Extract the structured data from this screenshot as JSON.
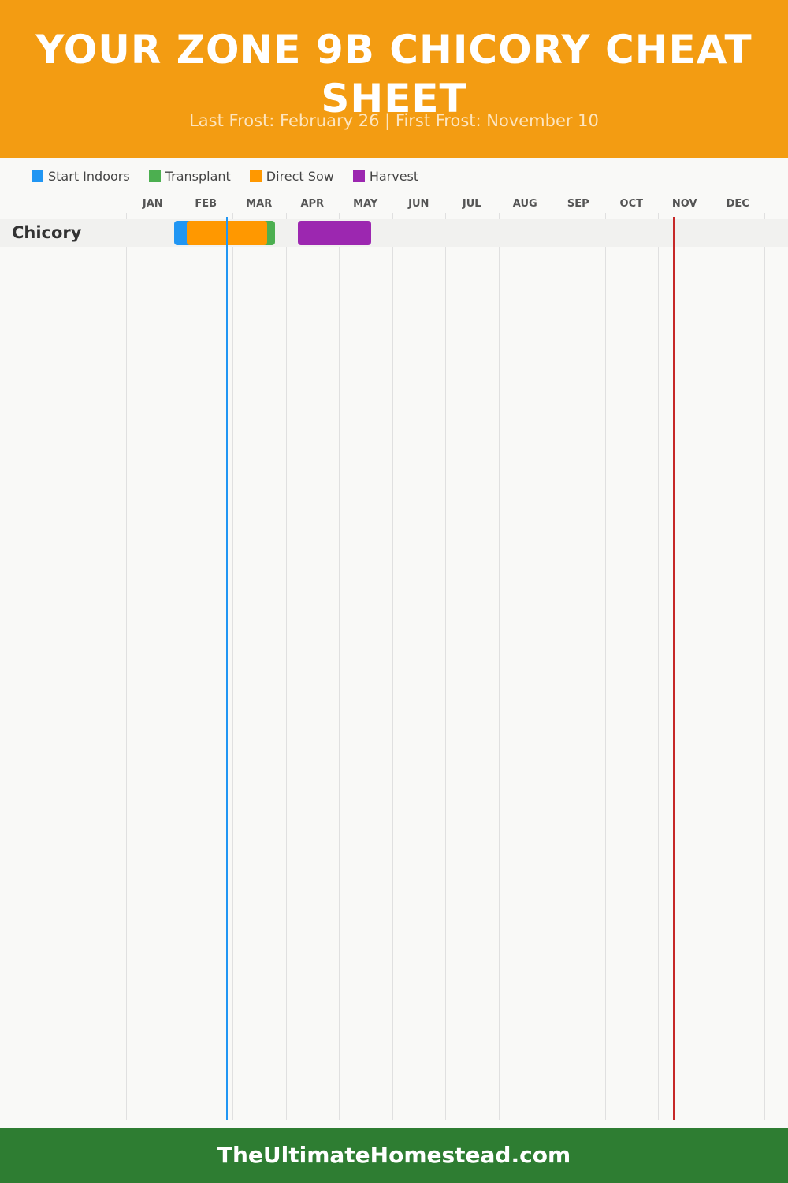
{
  "header": {
    "title": "Your Zone 9B Chicory Cheat Sheet",
    "subtitle": "Last Frost: February 26 | First Frost: November 10"
  },
  "footer": {
    "text": "TheUltimateHomestead.com"
  },
  "chart_data": {
    "type": "gantt",
    "legend": [
      {
        "name": "Start Indoors",
        "color": "#2196f3"
      },
      {
        "name": "Transplant",
        "color": "#4caf50"
      },
      {
        "name": "Direct Sow",
        "color": "#ff9800"
      },
      {
        "name": "Harvest",
        "color": "#9c27b0"
      }
    ],
    "months": [
      "JAN",
      "FEB",
      "MAR",
      "APR",
      "MAY",
      "JUN",
      "JUL",
      "AUG",
      "SEP",
      "OCT",
      "NOV",
      "DEC"
    ],
    "rows": [
      {
        "label": "Chicory",
        "tasks": [
          {
            "type": "Start Indoors",
            "start": "01-29",
            "end": "02-26"
          },
          {
            "type": "Transplant",
            "start": "02-26",
            "end": "03-26"
          },
          {
            "type": "Direct Sow",
            "start": "02-05",
            "end": "03-21"
          },
          {
            "type": "Harvest",
            "start": "04-08",
            "end": "05-20"
          }
        ]
      }
    ],
    "last_frost": {
      "date": "02-26",
      "color": "#2196f3"
    },
    "first_frost": {
      "date": "11-10",
      "color": "#c62828"
    }
  }
}
